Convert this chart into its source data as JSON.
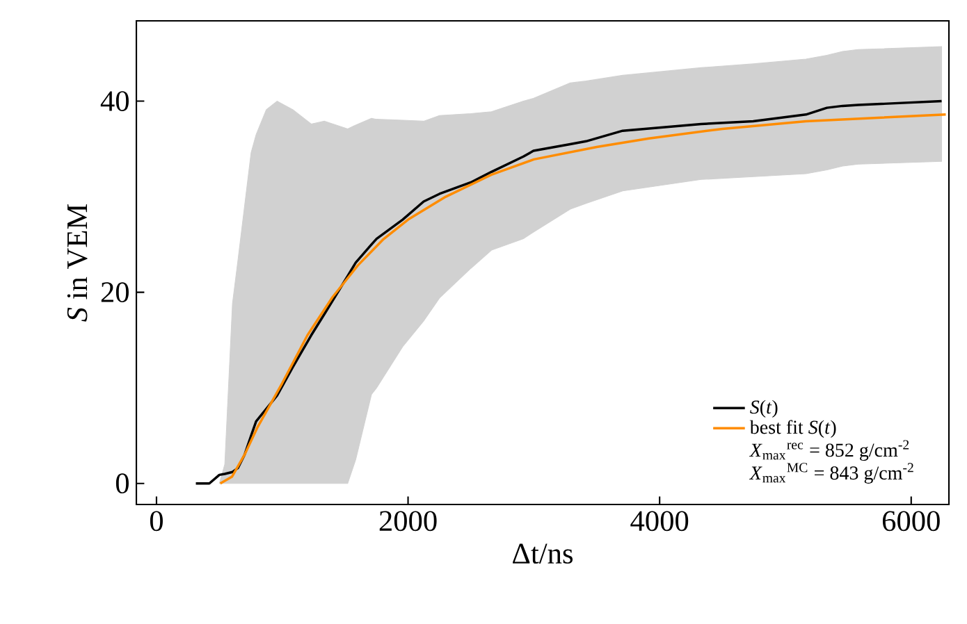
{
  "chart_data": {
    "type": "line",
    "xlabel": "Δt/ns",
    "ylabel": "*S* in VEM",
    "xlim": [
      -160,
      6300
    ],
    "ylim": [
      -2.2,
      48.4
    ],
    "xticks": [
      0,
      2000,
      4000,
      6000
    ],
    "yticks": [
      0,
      20,
      40
    ],
    "legend": "bottom right",
    "grid": false,
    "marker": "none",
    "line_style": "solid",
    "annotations": [
      "*X*$_{max}$$^{rec}$ = 852 g/cm$^{-2}$",
      "*X*$_{max}$$^{MC}$ = 843 g/cm$^{-2}$"
    ],
    "series": [
      {
        "name": "*S*(*t*)",
        "color": "#000000",
        "x": [
          313,
          420,
          500,
          543,
          604,
          647,
          700,
          752,
          792,
          873,
          959,
          1085,
          1230,
          1334,
          1520,
          1584,
          1709,
          1750,
          1957,
          2124,
          2250,
          2499,
          2663,
          2917,
          2997,
          3289,
          3415,
          3706,
          4330,
          4744,
          5164,
          5330,
          5455,
          5579,
          6242
        ],
        "values": [
          0,
          0,
          0.9,
          1.0,
          1.2,
          1.6,
          3,
          5,
          6.5,
          7.8,
          9.2,
          12.2,
          15.5,
          17.7,
          21.7,
          23.1,
          25,
          25.6,
          27.6,
          29.5,
          30.3,
          31.5,
          32.6,
          34.2,
          34.8,
          35.5,
          35.8,
          36.9,
          37.6,
          37.9,
          38.6,
          39.3,
          39.5,
          39.6,
          40
        ],
        "lower": [
          null,
          null,
          0,
          0,
          0,
          0,
          0,
          0,
          0,
          0,
          0,
          0,
          0,
          0,
          0,
          2.5,
          9.3,
          10,
          14.3,
          17,
          19.4,
          22.5,
          24.4,
          25.6,
          26.3,
          28.7,
          29.3,
          30.6,
          31.8,
          32.1,
          32.4,
          32.8,
          33.2,
          33.4,
          33.7
        ],
        "upper": [
          null,
          null,
          0,
          2,
          18.8,
          23.3,
          29,
          34.6,
          36.5,
          39.1,
          40,
          39.1,
          37.6,
          37.9,
          37.1,
          37.5,
          38.2,
          38.1,
          38,
          37.9,
          38.5,
          38.7,
          38.9,
          40,
          40.3,
          41.9,
          42.1,
          42.7,
          43.5,
          43.9,
          44.4,
          44.8,
          45.2,
          45.4,
          45.7
        ]
      },
      {
        "name": "best fit *S*(*t*)",
        "color": "#ff8c00",
        "x": [
          507,
          600,
          700,
          800,
          1000,
          1200,
          1400,
          1600,
          1800,
          2000,
          2300,
          2663,
          3000,
          3500,
          3915,
          4500,
          5164,
          6275
        ],
        "values": [
          0,
          0.7,
          3,
          5.8,
          10.5,
          15.5,
          19.5,
          22.8,
          25.5,
          27.6,
          30,
          32.3,
          33.9,
          35.2,
          36.1,
          37.1,
          37.9,
          38.6
        ]
      }
    ]
  }
}
